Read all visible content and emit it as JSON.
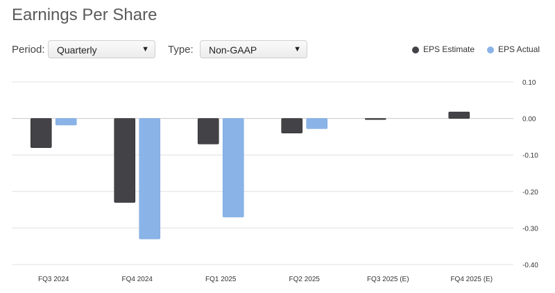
{
  "page_title": "Earnings Per Share",
  "controls": {
    "period_label": "Period:",
    "period_value": "Quarterly",
    "type_label": "Type:",
    "type_value": "Non-GAAP"
  },
  "legend": [
    {
      "label": "EPS Estimate",
      "color": "#434347"
    },
    {
      "label": "EPS Actual",
      "color": "#8ab4e8"
    }
  ],
  "chart_data": {
    "type": "bar",
    "title": "Earnings Per Share",
    "categories": [
      "FQ3 2024",
      "FQ4 2024",
      "FQ1 2025",
      "FQ2 2025",
      "FQ3 2025 (E)",
      "FQ4 2025 (E)"
    ],
    "series": [
      {
        "name": "EPS Estimate",
        "color": "#434347",
        "values": [
          -0.08,
          -0.23,
          -0.07,
          -0.04,
          -0.003,
          0.018
        ]
      },
      {
        "name": "EPS Actual",
        "color": "#8ab4e8",
        "values": [
          -0.018,
          -0.33,
          -0.27,
          -0.028,
          null,
          null
        ]
      }
    ],
    "ylim": [
      -0.4,
      0.1
    ],
    "y_ticks": [
      "0.10",
      "0.00",
      "-0.10",
      "-0.20",
      "-0.30",
      "-0.40"
    ],
    "y_tick_values": [
      0.1,
      0.0,
      -0.1,
      -0.2,
      -0.3,
      -0.4
    ],
    "y_axis_side": "right",
    "grid": true,
    "legend_position": "top-right"
  }
}
